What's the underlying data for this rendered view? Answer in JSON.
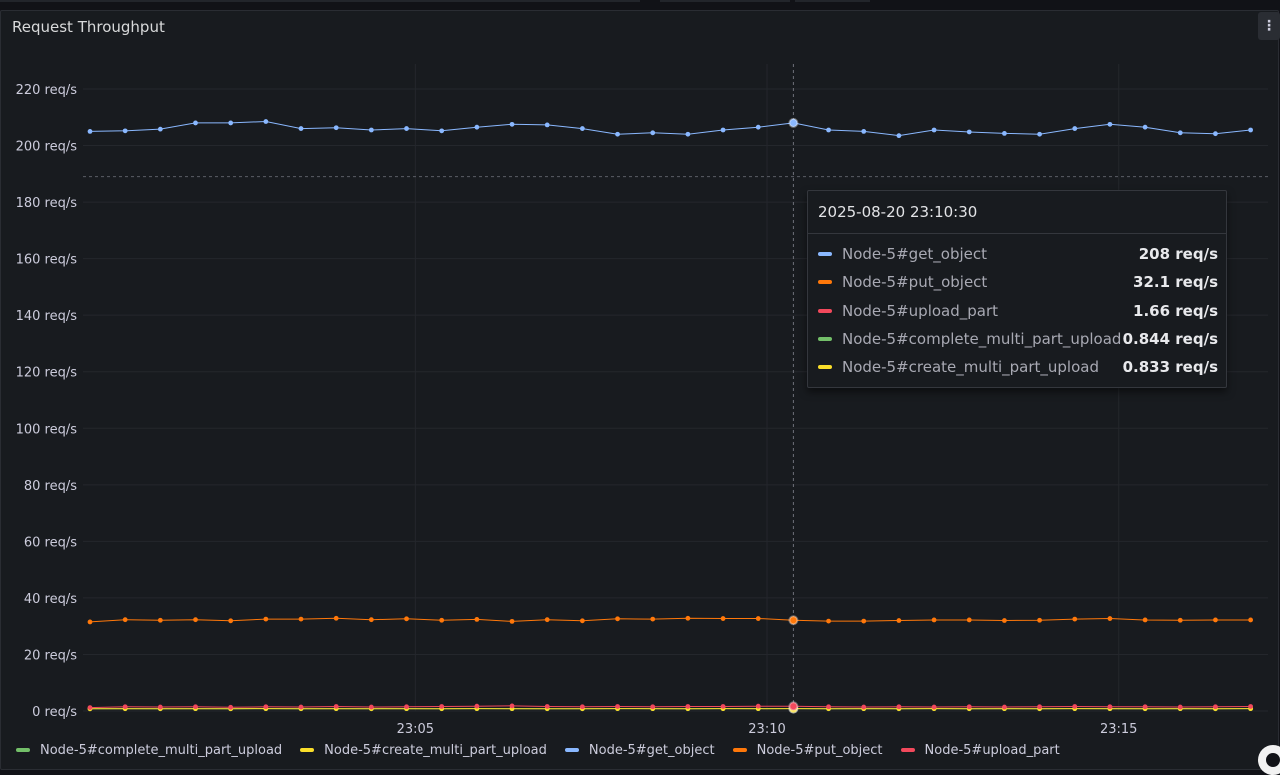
{
  "panel": {
    "title": "Request Throughput"
  },
  "icons": {
    "menu": "vertical-ellipsis-icon",
    "corner": "grafana-logo-icon"
  },
  "colors": {
    "get_object": "#8ab8ff",
    "put_object": "#ff780a",
    "upload_part": "#f2495c",
    "complete_multi_part_upload": "#73bf69",
    "create_multi_part_upload": "#fade2a"
  },
  "tooltip": {
    "time": "2025-08-20 23:10:30",
    "rows": [
      {
        "name": "Node-5#get_object",
        "value": "208 req/s",
        "color": "#8ab8ff"
      },
      {
        "name": "Node-5#put_object",
        "value": "32.1 req/s",
        "color": "#ff780a"
      },
      {
        "name": "Node-5#upload_part",
        "value": "1.66 req/s",
        "color": "#f2495c"
      },
      {
        "name": "Node-5#complete_multi_part_upload",
        "value": "0.844 req/s",
        "color": "#73bf69"
      },
      {
        "name": "Node-5#create_multi_part_upload",
        "value": "0.833 req/s",
        "color": "#fade2a"
      }
    ]
  },
  "legend": [
    {
      "label": "Node-5#complete_multi_part_upload",
      "color": "#73bf69"
    },
    {
      "label": "Node-5#create_multi_part_upload",
      "color": "#fade2a"
    },
    {
      "label": "Node-5#get_object",
      "color": "#8ab8ff"
    },
    {
      "label": "Node-5#put_object",
      "color": "#ff780a"
    },
    {
      "label": "Node-5#upload_part",
      "color": "#f2495c"
    }
  ],
  "chart_data": {
    "type": "line",
    "unit": "req/s",
    "ylim": [
      0,
      230
    ],
    "y_ticks": [
      {
        "value": 0,
        "label": "0 req/s"
      },
      {
        "value": 20,
        "label": "20 req/s"
      },
      {
        "value": 40,
        "label": "40 req/s"
      },
      {
        "value": 60,
        "label": "60 req/s"
      },
      {
        "value": 80,
        "label": "80 req/s"
      },
      {
        "value": 100,
        "label": "100 req/s"
      },
      {
        "value": 120,
        "label": "120 req/s"
      },
      {
        "value": 140,
        "label": "140 req/s"
      },
      {
        "value": 160,
        "label": "160 req/s"
      },
      {
        "value": 180,
        "label": "180 req/s"
      },
      {
        "value": 200,
        "label": "200 req/s"
      },
      {
        "value": 220,
        "label": "220 req/s"
      }
    ],
    "x_ticks": [
      "23:05",
      "23:10",
      "23:15"
    ],
    "x_tick_indices": [
      9.25,
      19.25,
      29.25
    ],
    "hover_index": 20,
    "threshold": 189,
    "grid": true,
    "legend_position": "bottom-left",
    "series": [
      {
        "name": "Node-5#get_object",
        "color": "#8ab8ff",
        "values": [
          205,
          205.2,
          205.8,
          208,
          208,
          208.5,
          206,
          206.3,
          205.5,
          206,
          205.2,
          206.5,
          207.5,
          207.3,
          206,
          204,
          204.5,
          204,
          205.5,
          206.5,
          208,
          205.5,
          205,
          203.5,
          205.5,
          204.8,
          204.3,
          204,
          206,
          207.5,
          206.5,
          204.5,
          204.2,
          205.5
        ]
      },
      {
        "name": "Node-5#put_object",
        "color": "#ff780a",
        "values": [
          31.5,
          32.3,
          32.1,
          32.3,
          31.9,
          32.5,
          32.5,
          32.8,
          32.3,
          32.6,
          32.1,
          32.4,
          31.7,
          32.3,
          31.9,
          32.6,
          32.5,
          32.8,
          32.7,
          32.7,
          32.1,
          31.8,
          31.8,
          32.0,
          32.2,
          32.2,
          32.0,
          32.1,
          32.5,
          32.7,
          32.2,
          32.1,
          32.2,
          32.2
        ]
      },
      {
        "name": "Node-5#upload_part",
        "color": "#f2495c",
        "values": [
          1.2,
          1.5,
          1.4,
          1.5,
          1.3,
          1.5,
          1.4,
          1.6,
          1.4,
          1.5,
          1.6,
          1.7,
          1.8,
          1.6,
          1.5,
          1.6,
          1.5,
          1.6,
          1.6,
          1.7,
          1.66,
          1.5,
          1.4,
          1.5,
          1.4,
          1.5,
          1.4,
          1.5,
          1.6,
          1.5,
          1.5,
          1.4,
          1.5,
          1.6
        ]
      },
      {
        "name": "Node-5#complete_multi_part_upload",
        "color": "#73bf69",
        "values": [
          0.8,
          0.85,
          0.82,
          0.84,
          0.8,
          0.86,
          0.83,
          0.85,
          0.82,
          0.84,
          0.83,
          0.85,
          0.84,
          0.83,
          0.82,
          0.85,
          0.84,
          0.83,
          0.85,
          0.84,
          0.844,
          0.83,
          0.84,
          0.82,
          0.85,
          0.83,
          0.84,
          0.83,
          0.85,
          0.84,
          0.83,
          0.84,
          0.82,
          0.85
        ]
      },
      {
        "name": "Node-5#create_multi_part_upload",
        "color": "#fade2a",
        "values": [
          0.78,
          0.82,
          0.8,
          0.83,
          0.79,
          0.84,
          0.82,
          0.83,
          0.81,
          0.83,
          0.82,
          0.84,
          0.83,
          0.82,
          0.81,
          0.84,
          0.83,
          0.82,
          0.84,
          0.83,
          0.833,
          0.82,
          0.83,
          0.81,
          0.84,
          0.82,
          0.83,
          0.82,
          0.84,
          0.83,
          0.82,
          0.83,
          0.81,
          0.84
        ]
      }
    ]
  }
}
